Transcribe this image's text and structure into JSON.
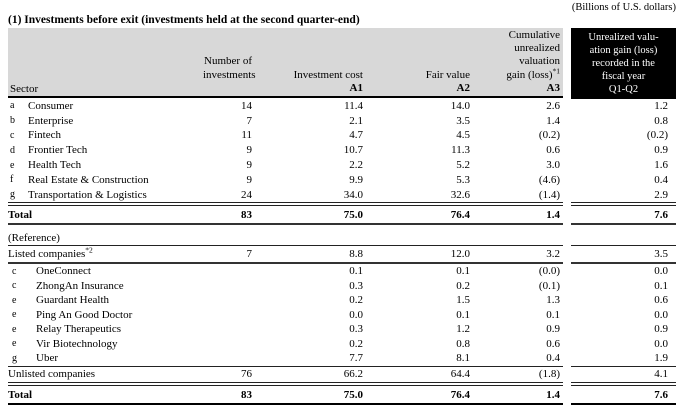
{
  "note": "(Billions of U.S. dollars)",
  "title": "(1) Investments before exit (investments held at the second quarter-end)",
  "colors": {
    "header_bg": "#d8d8d8",
    "highlight_header_bg": "#000000",
    "highlight_header_text": "#ffffff",
    "rule": "#222222"
  },
  "table": {
    "header": {
      "sector": "Sector",
      "col_investments": "Number of\ninvestments",
      "col_cost": "Investment cost",
      "col_cost_a": "A1",
      "col_fair": "Fair value",
      "col_fair_a": "A2",
      "col_gain": "Cumulative\nunrealized\nvaluation\ngain (loss)",
      "col_gain_sup": "*1",
      "col_gain_a": "A3",
      "col_q": "Unrealized valu-\nation gain (loss)\nrecorded in the\nfiscal year\nQ1-Q2"
    },
    "sectors": [
      {
        "letter": "a",
        "name": "Consumer",
        "n": "14",
        "cost": "11.4",
        "fair": "14.0",
        "gain": "2.6",
        "q": "1.2"
      },
      {
        "letter": "b",
        "name": "Enterprise",
        "n": "7",
        "cost": "2.1",
        "fair": "3.5",
        "gain": "1.4",
        "q": "0.8"
      },
      {
        "letter": "c",
        "name": "Fintech",
        "n": "11",
        "cost": "4.7",
        "fair": "4.5",
        "gain": "(0.2)",
        "q": "(0.2)"
      },
      {
        "letter": "d",
        "name": "Frontier Tech",
        "n": "9",
        "cost": "10.7",
        "fair": "11.3",
        "gain": "0.6",
        "q": "0.9"
      },
      {
        "letter": "e",
        "name": "Health Tech",
        "n": "9",
        "cost": "2.2",
        "fair": "5.2",
        "gain": "3.0",
        "q": "1.6"
      },
      {
        "letter": "f",
        "name": "Real Estate & Construction",
        "n": "9",
        "cost": "9.9",
        "fair": "5.3",
        "gain": "(4.6)",
        "q": "0.4"
      },
      {
        "letter": "g",
        "name": "Transportation & Logistics",
        "n": "24",
        "cost": "34.0",
        "fair": "32.6",
        "gain": "(1.4)",
        "q": "2.9"
      }
    ],
    "total": {
      "name": "Total",
      "n": "83",
      "cost": "75.0",
      "fair": "76.4",
      "gain": "1.4",
      "q": "7.6"
    },
    "reference_label": "(Reference)",
    "listed": {
      "name": "Listed companies",
      "sup": "*2",
      "n": "7",
      "cost": "8.8",
      "fair": "12.0",
      "gain": "3.2",
      "q": "3.5"
    },
    "companies": [
      {
        "letter": "c",
        "name": "OneConnect",
        "cost": "0.1",
        "fair": "0.1",
        "gain": "(0.0)",
        "q": "0.0"
      },
      {
        "letter": "c",
        "name": "ZhongAn Insurance",
        "cost": "0.3",
        "fair": "0.2",
        "gain": "(0.1)",
        "q": "0.1"
      },
      {
        "letter": "e",
        "name": "Guardant Health",
        "cost": "0.2",
        "fair": "1.5",
        "gain": "1.3",
        "q": "0.6"
      },
      {
        "letter": "e",
        "name": "Ping An Good Doctor",
        "cost": "0.0",
        "fair": "0.1",
        "gain": "0.1",
        "q": "0.0"
      },
      {
        "letter": "e",
        "name": "Relay Therapeutics",
        "cost": "0.3",
        "fair": "1.2",
        "gain": "0.9",
        "q": "0.9"
      },
      {
        "letter": "e",
        "name": "Vir Biotechnology",
        "cost": "0.2",
        "fair": "0.8",
        "gain": "0.6",
        "q": "0.0"
      },
      {
        "letter": "g",
        "name": "Uber",
        "cost": "7.7",
        "fair": "8.1",
        "gain": "0.4",
        "q": "1.9"
      }
    ],
    "unlisted": {
      "name": "Unlisted companies",
      "n": "76",
      "cost": "66.2",
      "fair": "64.4",
      "gain": "(1.8)",
      "q": "4.1"
    },
    "total2": {
      "name": "Total",
      "n": "83",
      "cost": "75.0",
      "fair": "76.4",
      "gain": "1.4",
      "q": "7.6"
    }
  }
}
